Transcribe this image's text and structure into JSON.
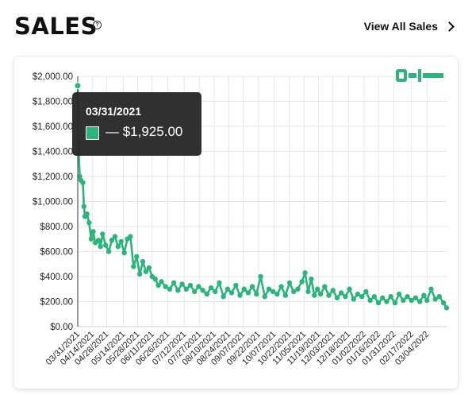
{
  "header": {
    "title": "SALES",
    "help_symbol": "?",
    "view_all_label": "View All Sales"
  },
  "logo": {
    "text": "CARD LADDER"
  },
  "tooltip": {
    "date": "03/31/2021",
    "value": "— $1,925.00"
  },
  "colors": {
    "series": "#2db37b",
    "tooltip_bg": "#282828",
    "grid": "#e6e6e6"
  },
  "chart_data": {
    "type": "line",
    "title": "",
    "xlabel": "",
    "ylabel": "",
    "ylim": [
      0,
      2000
    ],
    "y_ticks": [
      "$0.00",
      "$200.00",
      "$400.00",
      "$600.00",
      "$800.00",
      "$1,000.00",
      "$1,200.00",
      "$1,400.00",
      "$1,600.00",
      "$1,800.00",
      "$2,000.00"
    ],
    "x_ticks": [
      "03/31/2021",
      "04/14/2021",
      "04/28/2021",
      "05/14/2021",
      "05/28/2021",
      "06/11/2021",
      "06/26/2021",
      "07/12/2021",
      "07/27/2021",
      "08/10/2021",
      "08/24/2021",
      "09/07/2021",
      "09/22/2021",
      "10/07/2021",
      "10/22/2021",
      "11/05/2021",
      "11/19/2021",
      "12/03/2021",
      "12/18/2021",
      "01/02/2022",
      "01/16/2022",
      "01/31/2022",
      "02/17/2022",
      "03/04/2022"
    ],
    "series": [
      {
        "values": [
          {
            "x": "2021-03-31",
            "y": 1925
          },
          {
            "x": "2021-04-01",
            "y": 1380
          },
          {
            "x": "2021-04-02",
            "y": 1200
          },
          {
            "x": "2021-04-03",
            "y": 1170
          },
          {
            "x": "2021-04-05",
            "y": 1150
          },
          {
            "x": "2021-04-06",
            "y": 960
          },
          {
            "x": "2021-04-07",
            "y": 880
          },
          {
            "x": "2021-04-09",
            "y": 900
          },
          {
            "x": "2021-04-11",
            "y": 830
          },
          {
            "x": "2021-04-13",
            "y": 700
          },
          {
            "x": "2021-04-15",
            "y": 760
          },
          {
            "x": "2021-04-17",
            "y": 670
          },
          {
            "x": "2021-04-20",
            "y": 690
          },
          {
            "x": "2021-04-22",
            "y": 640
          },
          {
            "x": "2021-04-24",
            "y": 740
          },
          {
            "x": "2021-04-27",
            "y": 650
          },
          {
            "x": "2021-04-30",
            "y": 600
          },
          {
            "x": "2021-05-03",
            "y": 690
          },
          {
            "x": "2021-05-06",
            "y": 720
          },
          {
            "x": "2021-05-09",
            "y": 640
          },
          {
            "x": "2021-05-12",
            "y": 680
          },
          {
            "x": "2021-05-15",
            "y": 590
          },
          {
            "x": "2021-05-18",
            "y": 700
          },
          {
            "x": "2021-05-21",
            "y": 720
          },
          {
            "x": "2021-05-24",
            "y": 480
          },
          {
            "x": "2021-05-27",
            "y": 560
          },
          {
            "x": "2021-05-30",
            "y": 420
          },
          {
            "x": "2021-06-02",
            "y": 520
          },
          {
            "x": "2021-06-05",
            "y": 440
          },
          {
            "x": "2021-06-08",
            "y": 470
          },
          {
            "x": "2021-06-11",
            "y": 400
          },
          {
            "x": "2021-06-14",
            "y": 380
          },
          {
            "x": "2021-06-17",
            "y": 330
          },
          {
            "x": "2021-06-20",
            "y": 360
          },
          {
            "x": "2021-06-24",
            "y": 320
          },
          {
            "x": "2021-06-28",
            "y": 300
          },
          {
            "x": "2021-07-02",
            "y": 350
          },
          {
            "x": "2021-07-06",
            "y": 290
          },
          {
            "x": "2021-07-10",
            "y": 340
          },
          {
            "x": "2021-07-14",
            "y": 300
          },
          {
            "x": "2021-07-18",
            "y": 330
          },
          {
            "x": "2021-07-22",
            "y": 280
          },
          {
            "x": "2021-07-26",
            "y": 320
          },
          {
            "x": "2021-07-30",
            "y": 290
          },
          {
            "x": "2021-08-03",
            "y": 260
          },
          {
            "x": "2021-08-07",
            "y": 310
          },
          {
            "x": "2021-08-11",
            "y": 280
          },
          {
            "x": "2021-08-15",
            "y": 350
          },
          {
            "x": "2021-08-19",
            "y": 240
          },
          {
            "x": "2021-08-23",
            "y": 300
          },
          {
            "x": "2021-08-27",
            "y": 270
          },
          {
            "x": "2021-08-31",
            "y": 330
          },
          {
            "x": "2021-09-04",
            "y": 250
          },
          {
            "x": "2021-09-08",
            "y": 300
          },
          {
            "x": "2021-09-12",
            "y": 270
          },
          {
            "x": "2021-09-16",
            "y": 320
          },
          {
            "x": "2021-09-20",
            "y": 260
          },
          {
            "x": "2021-09-24",
            "y": 400
          },
          {
            "x": "2021-09-28",
            "y": 240
          },
          {
            "x": "2021-10-02",
            "y": 300
          },
          {
            "x": "2021-10-06",
            "y": 280
          },
          {
            "x": "2021-10-10",
            "y": 260
          },
          {
            "x": "2021-10-14",
            "y": 320
          },
          {
            "x": "2021-10-18",
            "y": 250
          },
          {
            "x": "2021-10-22",
            "y": 350
          },
          {
            "x": "2021-10-26",
            "y": 280
          },
          {
            "x": "2021-10-30",
            "y": 300
          },
          {
            "x": "2021-11-03",
            "y": 360
          },
          {
            "x": "2021-11-06",
            "y": 430
          },
          {
            "x": "2021-11-09",
            "y": 280
          },
          {
            "x": "2021-11-12",
            "y": 380
          },
          {
            "x": "2021-11-15",
            "y": 250
          },
          {
            "x": "2021-11-18",
            "y": 300
          },
          {
            "x": "2021-11-21",
            "y": 260
          },
          {
            "x": "2021-11-25",
            "y": 320
          },
          {
            "x": "2021-11-29",
            "y": 250
          },
          {
            "x": "2021-12-03",
            "y": 290
          },
          {
            "x": "2021-12-07",
            "y": 230
          },
          {
            "x": "2021-12-11",
            "y": 270
          },
          {
            "x": "2021-12-15",
            "y": 240
          },
          {
            "x": "2021-12-19",
            "y": 300
          },
          {
            "x": "2021-12-23",
            "y": 220
          },
          {
            "x": "2021-12-27",
            "y": 260
          },
          {
            "x": "2021-12-31",
            "y": 240
          },
          {
            "x": "2022-01-04",
            "y": 280
          },
          {
            "x": "2022-01-08",
            "y": 210
          },
          {
            "x": "2022-01-12",
            "y": 240
          },
          {
            "x": "2022-01-16",
            "y": 190
          },
          {
            "x": "2022-01-20",
            "y": 230
          },
          {
            "x": "2022-01-24",
            "y": 200
          },
          {
            "x": "2022-01-28",
            "y": 240
          },
          {
            "x": "2022-02-01",
            "y": 190
          },
          {
            "x": "2022-02-05",
            "y": 260
          },
          {
            "x": "2022-02-09",
            "y": 210
          },
          {
            "x": "2022-02-13",
            "y": 240
          },
          {
            "x": "2022-02-17",
            "y": 210
          },
          {
            "x": "2022-02-21",
            "y": 230
          },
          {
            "x": "2022-02-25",
            "y": 200
          },
          {
            "x": "2022-03-01",
            "y": 250
          },
          {
            "x": "2022-03-04",
            "y": 210
          },
          {
            "x": "2022-03-08",
            "y": 300
          },
          {
            "x": "2022-03-12",
            "y": 220
          },
          {
            "x": "2022-03-16",
            "y": 240
          },
          {
            "x": "2022-03-20",
            "y": 190
          },
          {
            "x": "2022-03-23",
            "y": 150
          }
        ]
      }
    ],
    "grid": true,
    "legend": "none"
  }
}
